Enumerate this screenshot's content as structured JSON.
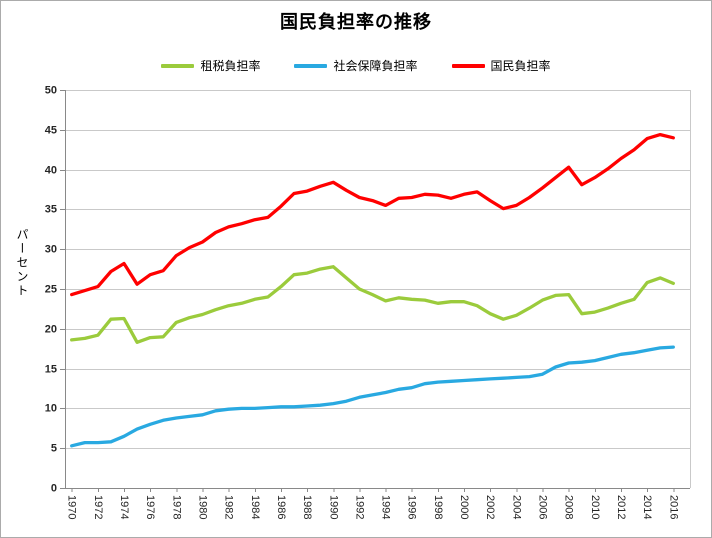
{
  "title": "国民負担率の推移",
  "y_axis_title": "パーセント",
  "colors": {
    "tax_green": "#9bcb3c",
    "social_blue": "#29a9e1",
    "total_red": "#ff0000",
    "gridline": "#c9c9c9",
    "axis": "#898989",
    "tick_label": "#262626",
    "frame_border": "#ababab",
    "background": "#ffffff"
  },
  "chart_data": {
    "type": "line",
    "title": "国民負担率の推移",
    "xlabel": "",
    "ylabel": "パーセント",
    "ylim": [
      0,
      50
    ],
    "ytick_step": 5,
    "xtick_label_step": 2,
    "grid": true,
    "legend_position": "top",
    "x": [
      1970,
      1971,
      1972,
      1973,
      1974,
      1975,
      1976,
      1977,
      1978,
      1979,
      1980,
      1981,
      1982,
      1983,
      1984,
      1985,
      1986,
      1987,
      1988,
      1989,
      1990,
      1991,
      1992,
      1993,
      1994,
      1995,
      1996,
      1997,
      1998,
      1999,
      2000,
      2001,
      2002,
      2003,
      2004,
      2005,
      2006,
      2007,
      2008,
      2009,
      2010,
      2011,
      2012,
      2013,
      2014,
      2015,
      2016
    ],
    "series": [
      {
        "name": "租税負担率",
        "color": "#9bcb3c",
        "values": [
          18.6,
          18.8,
          19.2,
          21.2,
          21.3,
          18.3,
          18.9,
          19.0,
          20.8,
          21.4,
          21.8,
          22.4,
          22.9,
          23.2,
          23.7,
          24.0,
          25.3,
          26.8,
          27.0,
          27.5,
          27.8,
          26.4,
          25.0,
          24.3,
          23.5,
          23.9,
          23.7,
          23.6,
          23.2,
          23.4,
          23.4,
          22.9,
          21.9,
          21.2,
          21.7,
          22.6,
          23.6,
          24.2,
          24.3,
          21.9,
          22.1,
          22.6,
          23.2,
          23.7,
          25.8,
          26.4,
          25.7
        ]
      },
      {
        "name": "社会保障負担率",
        "color": "#29a9e1",
        "values": [
          5.3,
          5.7,
          5.7,
          5.8,
          6.5,
          7.4,
          8.0,
          8.5,
          8.8,
          9.0,
          9.2,
          9.7,
          9.9,
          10.0,
          10.0,
          10.1,
          10.2,
          10.2,
          10.3,
          10.4,
          10.6,
          10.9,
          11.4,
          11.7,
          12.0,
          12.4,
          12.6,
          13.1,
          13.3,
          13.4,
          13.5,
          13.6,
          13.7,
          13.8,
          13.9,
          14.0,
          14.3,
          15.2,
          15.7,
          15.8,
          16.0,
          16.4,
          16.8,
          17.0,
          17.3,
          17.6,
          17.7
        ]
      },
      {
        "name": "国民負担率",
        "color": "#ff0000",
        "values": [
          24.3,
          24.8,
          25.3,
          27.2,
          28.2,
          25.6,
          26.8,
          27.3,
          29.2,
          30.2,
          30.9,
          32.1,
          32.8,
          33.2,
          33.7,
          34.0,
          35.4,
          37.0,
          37.3,
          37.9,
          38.4,
          37.4,
          36.5,
          36.1,
          35.5,
          36.4,
          36.5,
          36.9,
          36.8,
          36.4,
          36.9,
          37.2,
          36.1,
          35.1,
          35.5,
          36.5,
          37.7,
          39.0,
          40.3,
          38.1,
          39.0,
          40.1,
          41.4,
          42.5,
          43.9,
          44.4,
          44.0
        ]
      }
    ]
  }
}
